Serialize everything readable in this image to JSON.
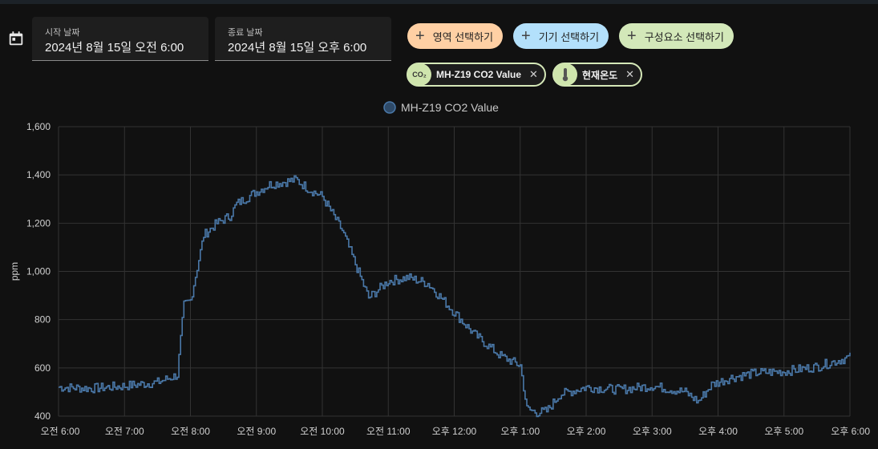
{
  "date_range": {
    "start_label": "시작 날짜",
    "start_value": "2024년 8월 15일 오전 6:00",
    "end_label": "종료 날짜",
    "end_value": "2024년 8월 15일 오후 6:00"
  },
  "pickers": [
    {
      "label": "영역 선택하기",
      "color": "#ffd0a4"
    },
    {
      "label": "기기 선택하기",
      "color": "#b3e0fb"
    },
    {
      "label": "구성요소 선택하기",
      "color": "#d3e8b9"
    }
  ],
  "chips": [
    {
      "label": "MH-Z19 CO2 Value",
      "icon": "co2-icon",
      "icon_text": "CO₂"
    },
    {
      "label": "현재온도",
      "icon": "thermometer-icon"
    }
  ],
  "chart_data": {
    "type": "line",
    "legend": "MH-Z19 CO2 Value",
    "series_color": "#4a78a8",
    "ylabel": "ppm",
    "ylim": [
      400,
      1600
    ],
    "yticks": [
      "400",
      "600",
      "800",
      "1,000",
      "1,200",
      "1,400",
      "1,600"
    ],
    "xticks": [
      "오전 6:00",
      "오전 7:00",
      "오전 8:00",
      "오전 9:00",
      "오전 10:00",
      "오전 11:00",
      "오후 12:00",
      "오후 1:00",
      "오후 2:00",
      "오후 3:00",
      "오후 4:00",
      "오후 5:00",
      "오후 6:00"
    ],
    "x_hours": [
      0,
      0.5,
      1,
      1.5,
      1.8,
      1.85,
      1.9,
      2.0,
      2.2,
      2.4,
      2.6,
      2.7,
      3.0,
      3.2,
      3.5,
      3.6,
      3.8,
      4.0,
      4.3,
      4.7,
      5.0,
      5.3,
      5.6,
      6.0,
      6.3,
      6.7,
      7.0,
      7.1,
      7.25,
      7.4,
      7.6,
      8.0,
      8.5,
      9.0,
      9.5,
      9.7,
      9.9,
      10.2,
      10.6,
      11.0,
      11.5,
      12.0
    ],
    "values": [
      520,
      515,
      525,
      540,
      570,
      720,
      860,
      880,
      1150,
      1200,
      1230,
      1280,
      1330,
      1360,
      1375,
      1380,
      1340,
      1310,
      1170,
      890,
      960,
      975,
      950,
      830,
      740,
      650,
      610,
      430,
      415,
      420,
      490,
      520,
      510,
      525,
      500,
      460,
      530,
      560,
      580,
      585,
      605,
      645
    ]
  }
}
